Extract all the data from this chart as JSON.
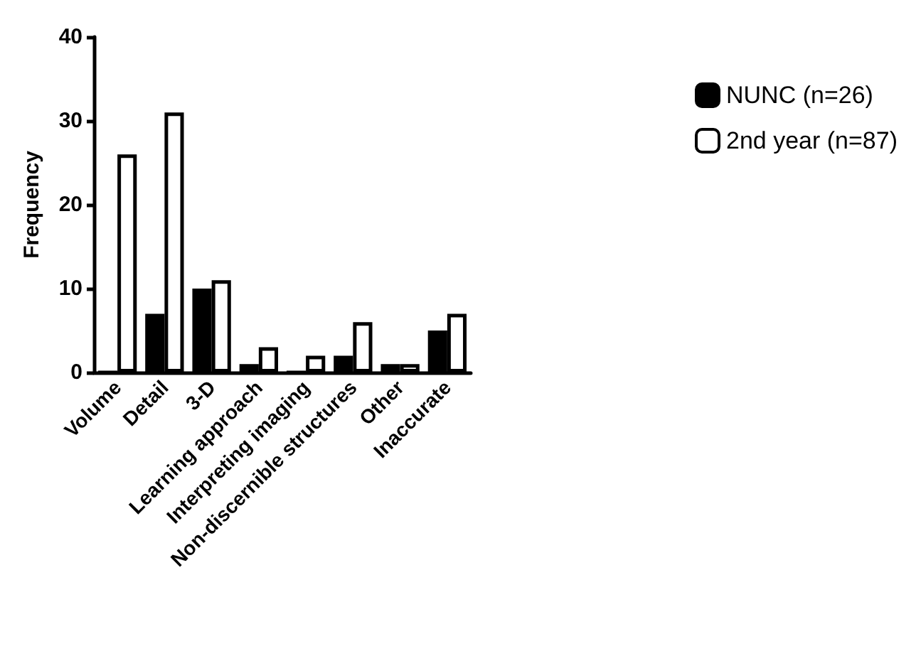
{
  "chart_data": {
    "type": "bar",
    "ylabel": "Frequency",
    "categories": [
      "Volume",
      "Detail",
      "3-D",
      "Learning approach",
      "Interpreting imaging",
      "Non-discernible structures",
      "Other",
      "Inaccurate"
    ],
    "series": [
      {
        "name": "NUNC (n=26)",
        "color": "#000000",
        "values": [
          0,
          7,
          10,
          1,
          0,
          2,
          1,
          5
        ]
      },
      {
        "name": "2nd year (n=87)",
        "color": "#ffffff",
        "values": [
          26,
          31,
          11,
          3,
          2,
          6,
          1,
          7
        ]
      }
    ],
    "ylim": [
      0,
      40
    ],
    "yticks": [
      0,
      10,
      20,
      30,
      40
    ],
    "grid": false,
    "legend": "right"
  }
}
